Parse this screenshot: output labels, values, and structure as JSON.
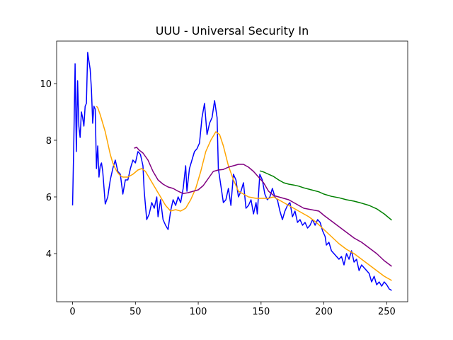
{
  "chart_data": {
    "type": "line",
    "title": "UUU - Universal Security In",
    "xlim": [
      -12.7,
      266.7
    ],
    "ylim": [
      2.3,
      11.5
    ],
    "xticks": [
      0,
      50,
      100,
      150,
      200,
      250
    ],
    "yticks": [
      4,
      6,
      8,
      10
    ],
    "series": [
      {
        "color": "blue",
        "x": [
          0,
          1,
          2,
          3,
          4,
          5,
          6,
          7,
          8,
          9,
          10,
          11,
          12,
          13,
          14,
          15,
          16,
          17,
          18,
          19,
          20,
          21,
          22,
          23,
          24,
          26,
          28,
          30,
          32,
          34,
          36,
          38,
          40,
          42,
          44,
          46,
          48,
          50,
          52,
          54,
          56,
          57,
          59,
          61,
          63,
          65,
          67,
          68,
          70,
          72,
          74,
          76,
          78,
          80,
          82,
          84,
          86,
          88,
          90,
          91,
          93,
          95,
          97,
          99,
          101,
          103,
          105,
          107,
          109,
          111,
          113,
          115,
          116,
          118,
          120,
          122,
          124,
          126,
          128,
          130,
          132,
          134,
          136,
          138,
          140,
          142,
          144,
          146,
          147,
          149,
          151,
          153,
          155,
          157,
          159,
          161,
          163,
          165,
          167,
          169,
          171,
          173,
          175,
          177,
          179,
          181,
          183,
          185,
          187,
          189,
          191,
          193,
          195,
          197,
          199,
          201,
          202,
          204,
          206,
          208,
          210,
          212,
          214,
          216,
          218,
          220,
          222,
          224,
          226,
          228,
          230,
          232,
          234,
          236,
          238,
          240,
          242,
          244,
          246,
          248,
          250,
          252,
          254
        ],
        "values": [
          5.7,
          8,
          10.7,
          7.6,
          10.1,
          8.5,
          8.1,
          9.0,
          8.8,
          8.5,
          9.2,
          9.3,
          11.1,
          10.8,
          10.5,
          9.8,
          8.6,
          9.2,
          9.1,
          7.0,
          7.8,
          6.7,
          7.1,
          7.2,
          6.9,
          5.75,
          6.0,
          6.6,
          7.0,
          7.3,
          6.9,
          6.8,
          6.1,
          6.6,
          6.6,
          7.0,
          7.3,
          7.2,
          7.6,
          7.5,
          7.1,
          6.2,
          5.2,
          5.4,
          5.8,
          5.6,
          6.0,
          5.3,
          5.9,
          5.2,
          5.0,
          4.85,
          5.5,
          5.9,
          5.7,
          6.0,
          5.8,
          6.3,
          7.1,
          6.2,
          7.0,
          7.3,
          7.6,
          7.7,
          7.9,
          8.8,
          9.3,
          8.2,
          8.6,
          8.8,
          9.4,
          8.8,
          7.0,
          6.4,
          5.8,
          5.9,
          6.3,
          5.7,
          6.8,
          6.6,
          6.0,
          6.2,
          6.5,
          5.6,
          5.7,
          5.9,
          5.4,
          5.8,
          5.4,
          6.8,
          6.6,
          6.1,
          5.9,
          6.0,
          6.3,
          6.0,
          5.9,
          5.5,
          5.2,
          5.5,
          5.7,
          5.8,
          5.3,
          5.5,
          5.1,
          5.2,
          5.0,
          5.1,
          4.9,
          5.0,
          5.2,
          5.0,
          5.2,
          5.1,
          4.8,
          4.6,
          4.3,
          4.4,
          4.1,
          4.0,
          3.9,
          3.8,
          3.9,
          3.6,
          4.0,
          3.8,
          4.1,
          3.7,
          3.8,
          3.4,
          3.6,
          3.5,
          3.4,
          3.3,
          3.0,
          3.2,
          2.9,
          3.0,
          2.85,
          3.0,
          2.9,
          2.75,
          2.7
        ]
      },
      {
        "color": "orange",
        "x": [
          19,
          20,
          22,
          24,
          26,
          28,
          30,
          32,
          34,
          36,
          38,
          40,
          44,
          48,
          52,
          55,
          58,
          62,
          66,
          70,
          74,
          78,
          82,
          86,
          90,
          94,
          98,
          102,
          106,
          110,
          114,
          117,
          120,
          124,
          128,
          132,
          136,
          140,
          146,
          150,
          156,
          160,
          164,
          170,
          176,
          182,
          188,
          194,
          200,
          206,
          212,
          218,
          224,
          230,
          236,
          242,
          248,
          254
        ],
        "values": [
          9.2,
          9.15,
          8.9,
          8.6,
          8.3,
          7.9,
          7.5,
          7.2,
          7.0,
          6.85,
          6.75,
          6.7,
          6.7,
          6.8,
          6.95,
          7.0,
          6.9,
          6.6,
          6.3,
          6.0,
          5.7,
          5.5,
          5.55,
          5.5,
          5.6,
          5.9,
          6.3,
          6.9,
          7.6,
          8.0,
          8.3,
          8.2,
          7.8,
          7.1,
          6.6,
          6.2,
          6.1,
          6.0,
          5.95,
          5.95,
          5.95,
          6.0,
          5.9,
          5.75,
          5.6,
          5.45,
          5.3,
          5.1,
          4.85,
          4.6,
          4.35,
          4.15,
          4.0,
          3.8,
          3.6,
          3.4,
          3.2,
          3.05
        ]
      },
      {
        "color": "purple",
        "x": [
          49,
          51,
          53,
          56,
          60,
          64,
          68,
          72,
          76,
          80,
          84,
          88,
          92,
          96,
          100,
          104,
          108,
          112,
          116,
          120,
          124,
          128,
          132,
          136,
          140,
          144,
          148,
          152,
          156,
          160,
          164,
          168,
          172,
          176,
          180,
          184,
          190,
          196,
          200,
          206,
          212,
          218,
          224,
          230,
          236,
          242,
          248,
          254
        ],
        "values": [
          7.72,
          7.75,
          7.65,
          7.55,
          7.3,
          6.9,
          6.6,
          6.45,
          6.35,
          6.3,
          6.2,
          6.12,
          6.15,
          6.2,
          6.25,
          6.4,
          6.65,
          6.9,
          6.95,
          6.97,
          7.05,
          7.1,
          7.15,
          7.15,
          7.05,
          6.9,
          6.7,
          6.5,
          6.2,
          6.05,
          6.0,
          5.95,
          5.9,
          5.8,
          5.7,
          5.6,
          5.55,
          5.5,
          5.35,
          5.15,
          4.95,
          4.75,
          4.55,
          4.4,
          4.2,
          4.0,
          3.75,
          3.55
        ]
      },
      {
        "color": "green",
        "x": [
          149,
          152,
          156,
          160,
          164,
          168,
          172,
          176,
          180,
          184,
          190,
          196,
          200,
          206,
          212,
          218,
          224,
          230,
          236,
          242,
          248,
          254
        ],
        "values": [
          6.92,
          6.88,
          6.8,
          6.72,
          6.6,
          6.5,
          6.45,
          6.42,
          6.38,
          6.32,
          6.25,
          6.18,
          6.1,
          6.02,
          5.97,
          5.9,
          5.85,
          5.78,
          5.7,
          5.58,
          5.4,
          5.18
        ]
      }
    ]
  }
}
